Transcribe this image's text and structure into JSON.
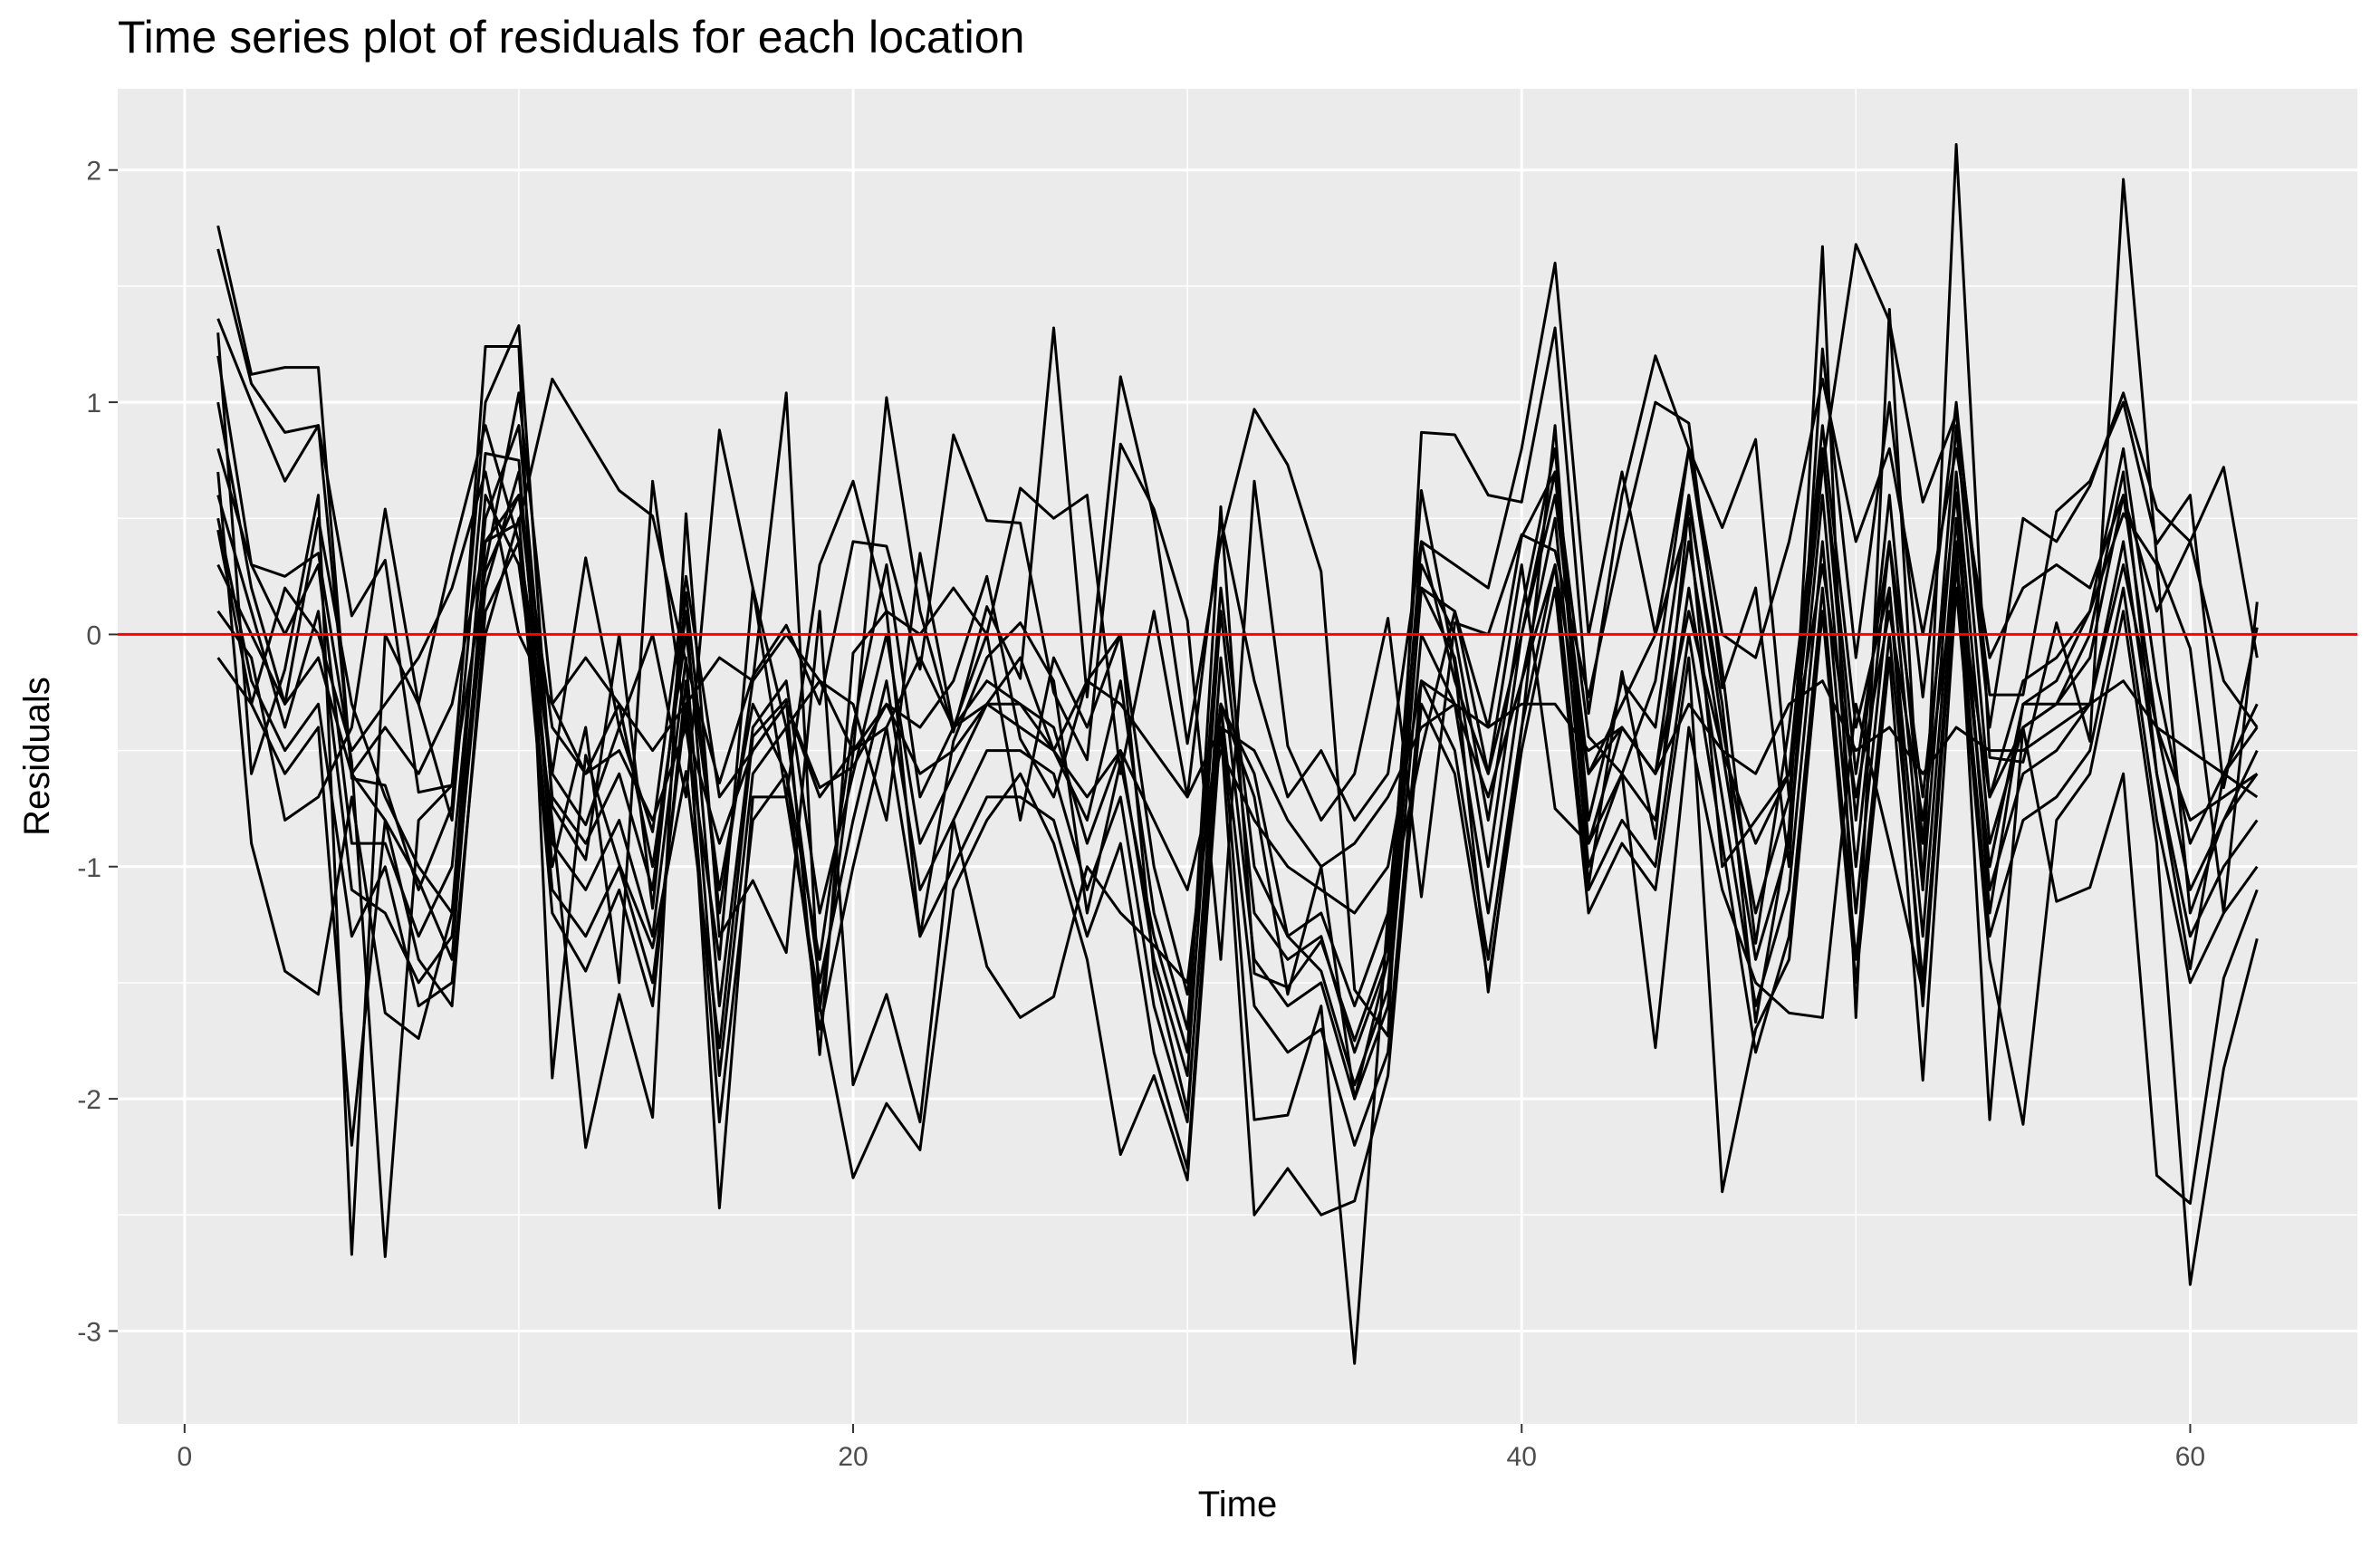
{
  "chart_data": {
    "type": "line",
    "title": "Time series plot of residuals for each location",
    "xlabel": "Time",
    "ylabel": "Residuals",
    "xlim": [
      -2,
      65
    ],
    "ylim": [
      -3.4,
      2.35
    ],
    "x_ticks": [
      0,
      20,
      40,
      60
    ],
    "y_ticks": [
      -3,
      -2,
      -1,
      0,
      1,
      2
    ],
    "x_tick_labels": [
      "0",
      "20",
      "40",
      "60"
    ],
    "y_tick_labels": [
      "-3",
      "-2",
      "-1",
      "0",
      "1",
      "2"
    ],
    "grid": true,
    "panel_background": "#ebebeb",
    "grid_color": "#ffffff",
    "series_color": "#000000",
    "reference_line": {
      "y": 0,
      "color": "#ff0000"
    },
    "x": [
      1,
      2,
      3,
      4,
      5,
      6,
      7,
      8,
      9,
      10,
      11,
      12,
      13,
      14,
      15,
      16,
      17,
      18,
      19,
      20,
      21,
      22,
      23,
      24,
      25,
      26,
      27,
      28,
      29,
      30,
      31,
      32,
      33,
      34,
      35,
      36,
      37,
      38,
      39,
      40,
      41,
      42,
      43,
      44,
      45,
      46,
      47,
      48,
      49,
      50,
      51,
      52,
      53,
      54,
      55,
      56,
      57,
      58,
      59,
      60,
      61,
      62
    ],
    "series": [
      {
        "values": [
          1.76,
          1.12,
          1.15,
          1.15,
          -0.62,
          -0.65,
          -1.1,
          -0.74,
          1.24,
          1.24,
          -1.91,
          -0.52,
          -0.99,
          -1.35,
          -0.59,
          -1.78,
          -0.44,
          -0.28,
          -1.81,
          -0.08,
          0.1,
          -1.3,
          -0.46,
          -0.1,
          0.05,
          -0.2,
          -1.2,
          -0.55,
          -1.3,
          -1.8,
          0.55,
          -1.46,
          -1.52,
          -1.32,
          -1.75,
          -1.34,
          0.62,
          -0.13,
          -1.54,
          -0.41,
          0.9,
          -1.08,
          -0.16,
          -0.88,
          0.56,
          -0.3,
          -1.67,
          -0.84,
          1.67,
          -1.65,
          1.4,
          -1.1,
          2.11,
          -0.53,
          -0.55,
          0.05,
          -0.46,
          1.96,
          0.32,
          -0.06,
          -1.2,
          0.14
        ]
      },
      {
        "values": [
          1.66,
          1.08,
          0.87,
          0.9,
          0.08,
          0.32,
          -0.68,
          -0.65,
          1.0,
          1.33,
          -0.74,
          -0.97,
          0.0,
          -1.18,
          0.18,
          -1.2,
          -0.2,
          1.04,
          -1.62,
          -0.51,
          1.02,
          0.1,
          -0.42,
          0.12,
          -0.19,
          1.32,
          -0.27,
          1.11,
          0.5,
          -0.47,
          0.4,
          0.97,
          0.73,
          0.27,
          -1.53,
          -1.73,
          0.87,
          0.86,
          0.6,
          0.57,
          1.32,
          -0.34,
          0.6,
          1.2,
          0.8,
          0.46,
          0.84,
          -0.7,
          0.72,
          1.68,
          1.35,
          0.57,
          0.95,
          -0.26,
          -0.26,
          0.53,
          0.66,
          1.0,
          0.39,
          0.6,
          -0.66,
          0.03
        ]
      },
      {
        "values": [
          1.36,
          1.0,
          0.66,
          0.9,
          -0.6,
          -0.8,
          -1.06,
          -1.4,
          0.4,
          0.48,
          1.1,
          0.86,
          0.62,
          0.51,
          -0.12,
          -0.64,
          -0.18,
          0.04,
          -0.3,
          0.4,
          0.38,
          -0.15,
          0.86,
          0.49,
          0.48,
          -0.25,
          -0.54,
          0.82,
          0.54,
          0.06,
          -1.4,
          0.66,
          -0.48,
          -0.8,
          -0.6,
          0.07,
          -1.13,
          0.05,
          0.0,
          0.43,
          0.36,
          -0.27,
          0.4,
          1.0,
          0.91,
          -0.23,
          0.2,
          -1.0,
          1.23,
          -0.1,
          1.0,
          -0.27,
          1.0,
          -0.4,
          0.5,
          0.4,
          0.64,
          1.04,
          0.54,
          0.4,
          -0.2,
          -0.4
        ]
      },
      {
        "values": [
          1.3,
          -0.6,
          -0.15,
          0.6,
          -2.67,
          0.0,
          -0.3,
          -0.8,
          0.78,
          0.75,
          -1.0,
          -0.4,
          -1.5,
          0.66,
          -0.4,
          -1.4,
          0.2,
          -0.4,
          -0.2,
          -0.3,
          -0.8,
          0.35,
          -0.4,
          0.0,
          -0.8,
          -0.1,
          -0.4,
          0.0,
          -1.0,
          -1.55,
          -0.3,
          -0.7,
          -1.55,
          -1.0,
          -2.0,
          -1.4,
          0.4,
          -0.2,
          -0.6,
          0.0,
          0.6,
          -0.6,
          -0.3,
          0.0,
          0.5,
          -1.0,
          -0.8,
          -0.6,
          0.9,
          -0.4,
          0.2,
          -1.6,
          0.3,
          -1.0,
          -0.3,
          -0.2,
          0.1,
          0.52,
          0.3,
          -1.2,
          -0.8,
          -0.5
        ]
      },
      {
        "values": [
          1.2,
          0.3,
          0.25,
          0.35,
          -0.55,
          -2.68,
          -0.8,
          -0.65,
          0.27,
          0.6,
          -0.6,
          -0.82,
          -0.4,
          -0.85,
          0.25,
          -0.7,
          -0.5,
          -0.3,
          -0.66,
          -0.57,
          -0.3,
          -0.4,
          -0.2,
          0.25,
          -0.45,
          -0.7,
          -0.2,
          0.0,
          -1.45,
          -2.05,
          -0.3,
          -0.6,
          -1.3,
          -1.45,
          -1.94,
          -1.53,
          0.2,
          0.1,
          -0.4,
          0.42,
          0.7,
          -0.44,
          -0.6,
          -0.2,
          0.8,
          -0.15,
          -1.33,
          -0.4,
          0.8,
          -0.6,
          0.4,
          -0.7,
          0.61,
          -1.2,
          -0.3,
          -0.3,
          0.0,
          0.7,
          -0.6,
          -1.44,
          -0.6,
          -0.3
        ]
      },
      {
        "values": [
          1.0,
          0.2,
          -0.3,
          0.5,
          -0.3,
          -0.7,
          -1.0,
          -1.2,
          0.3,
          1.04,
          -0.3,
          -0.6,
          -0.3,
          -1.0,
          0.0,
          -1.1,
          -0.3,
          -0.6,
          -1.4,
          -0.4,
          0.3,
          -0.7,
          -0.4,
          -0.3,
          -0.1,
          -0.5,
          -0.8,
          -0.2,
          -1.2,
          -1.7,
          0.2,
          -1.0,
          -1.3,
          -1.2,
          -1.6,
          -1.2,
          0.3,
          0.0,
          -0.8,
          0.1,
          0.8,
          -0.8,
          -0.2,
          -0.4,
          0.6,
          -0.4,
          -1.2,
          -0.7,
          0.8,
          -0.8,
          0.6,
          -0.9,
          0.9,
          -0.7,
          -0.2,
          -0.1,
          0.1,
          0.8,
          -0.2,
          -0.9,
          -0.6,
          -0.4
        ]
      },
      {
        "values": [
          0.8,
          0.3,
          0.0,
          0.3,
          -0.9,
          -0.9,
          -1.3,
          -1.0,
          0.5,
          0.9,
          -0.7,
          -0.9,
          -0.6,
          -1.1,
          0.1,
          -1.6,
          -0.4,
          -0.2,
          -1.2,
          -0.6,
          0.0,
          -0.9,
          -0.6,
          -0.3,
          -0.3,
          -0.4,
          -0.9,
          -0.5,
          -1.4,
          -1.9,
          0.1,
          -1.2,
          -1.4,
          -1.3,
          -1.8,
          -1.4,
          0.2,
          -0.1,
          -1.0,
          0.0,
          0.7,
          -0.9,
          -0.4,
          -0.6,
          0.4,
          -0.5,
          -1.4,
          -0.9,
          0.6,
          -1.0,
          0.4,
          -1.1,
          0.7,
          -0.9,
          -0.4,
          -0.3,
          -0.1,
          0.6,
          -0.4,
          -1.1,
          -0.8,
          -0.6
        ]
      },
      {
        "values": [
          0.6,
          0.1,
          -0.4,
          0.1,
          -1.1,
          -1.2,
          -1.5,
          -1.3,
          0.2,
          0.7,
          -0.9,
          -1.1,
          -0.8,
          -1.3,
          -0.1,
          -1.9,
          -0.6,
          -0.4,
          -1.5,
          -0.8,
          -0.2,
          -1.1,
          -0.8,
          -0.5,
          -0.5,
          -0.6,
          -1.1,
          -0.7,
          -1.6,
          -2.1,
          -0.1,
          -1.4,
          -1.6,
          -1.5,
          -2.0,
          -1.6,
          0.0,
          -0.3,
          -1.2,
          -0.2,
          0.5,
          -1.0,
          -0.6,
          -0.8,
          0.2,
          -0.7,
          -1.6,
          -1.1,
          0.4,
          -1.2,
          0.2,
          -1.3,
          0.5,
          -1.1,
          -0.6,
          -0.5,
          -0.3,
          0.4,
          -0.6,
          -1.3,
          -1.0,
          -0.8
        ]
      },
      {
        "values": [
          0.5,
          -0.2,
          -0.5,
          -0.3,
          -1.3,
          -1.0,
          -1.6,
          -1.5,
          0.0,
          0.5,
          -1.1,
          -1.3,
          -1.0,
          -1.5,
          -0.3,
          -2.1,
          -0.8,
          -0.6,
          -1.7,
          -1.0,
          -0.4,
          -1.3,
          -1.0,
          -0.7,
          -0.7,
          -0.8,
          -1.3,
          -0.9,
          -1.8,
          -2.3,
          -0.3,
          -1.6,
          -1.8,
          -1.7,
          -2.2,
          -1.8,
          -0.2,
          -0.5,
          -1.4,
          -0.4,
          0.3,
          -1.1,
          -0.8,
          -1.0,
          0.0,
          -0.9,
          -1.8,
          -1.3,
          0.2,
          -1.4,
          0.0,
          -1.5,
          0.3,
          -1.3,
          -0.8,
          -0.7,
          -0.5,
          0.2,
          -0.8,
          -1.5,
          -1.2,
          -1.0
        ]
      },
      {
        "values": [
          0.45,
          -0.3,
          -0.6,
          -0.4,
          -2.2,
          -0.8,
          -1.4,
          -1.6,
          0.1,
          0.4,
          -1.2,
          -1.45,
          -1.1,
          -1.6,
          -0.2,
          -2.47,
          -0.7,
          -0.7,
          -1.6,
          -2.34,
          -2.02,
          -2.22,
          -1.1,
          -0.8,
          -0.6,
          -0.9,
          -1.4,
          -2.24,
          -1.9,
          -2.35,
          -0.4,
          -2.5,
          -2.3,
          -2.5,
          -2.44,
          -1.9,
          -0.3,
          -0.6,
          -1.5,
          -0.5,
          0.2,
          -1.2,
          -0.9,
          -1.1,
          -0.1,
          -2.4,
          -1.7,
          -1.4,
          0.1,
          -1.5,
          -0.1,
          -1.92,
          0.2,
          -1.4,
          -2.11,
          -0.8,
          -0.6,
          0.1,
          -0.9,
          -2.8,
          -1.87,
          -1.31
        ]
      },
      {
        "values": [
          0.7,
          -0.9,
          -1.45,
          -1.55,
          -0.7,
          -1.63,
          -1.74,
          -1.2,
          0.6,
          0.3,
          -0.8,
          -2.21,
          -1.55,
          -2.08,
          0.52,
          -1.3,
          -1.06,
          -1.37,
          0.1,
          -1.94,
          -1.55,
          -2.1,
          -0.8,
          -1.43,
          -1.65,
          -1.56,
          -1.0,
          -1.2,
          -1.34,
          -1.5,
          -0.3,
          -2.09,
          -2.07,
          -1.6,
          -3.14,
          -1.2,
          -0.5,
          0.1,
          -0.6,
          0.3,
          -0.75,
          -0.9,
          -0.6,
          -1.78,
          -0.4,
          -1.1,
          -1.5,
          -1.63,
          -1.65,
          -0.3,
          -0.9,
          -1.54,
          0.4,
          -2.09,
          -0.4,
          -1.15,
          -1.09,
          -0.6,
          -2.33,
          -2.45,
          -1.48,
          -1.1
        ]
      },
      {
        "values": [
          0.1,
          -0.1,
          -0.8,
          -0.7,
          -0.4,
          0.54,
          -0.3,
          0.34,
          0.9,
          0.4,
          -0.6,
          0.33,
          -0.4,
          0.0,
          -0.7,
          0.88,
          0.2,
          -0.7,
          0.3,
          0.66,
          0.1,
          0.0,
          0.2,
          0.0,
          0.63,
          0.5,
          0.6,
          -0.6,
          0.1,
          -0.7,
          0.5,
          -0.2,
          -0.7,
          -0.5,
          -0.8,
          -0.6,
          0.4,
          0.3,
          0.2,
          0.8,
          1.6,
          0.0,
          0.7,
          0.0,
          0.8,
          0.0,
          -0.1,
          0.4,
          1.1,
          0.4,
          0.8,
          0.0,
          0.8,
          -0.1,
          0.2,
          0.3,
          0.2,
          0.6,
          0.1,
          0.4,
          0.72,
          -0.1
        ]
      },
      {
        "values": [
          -0.1,
          -0.3,
          0.2,
          0.0,
          -0.5,
          -0.3,
          -0.1,
          0.2,
          0.7,
          0.0,
          -0.3,
          -0.1,
          -0.3,
          -0.5,
          -0.3,
          -0.1,
          -0.2,
          0.0,
          -0.2,
          -0.5,
          -0.4,
          -0.1,
          -0.4,
          -0.2,
          -0.3,
          -0.5,
          -0.2,
          -0.3,
          -0.5,
          -0.7,
          -0.4,
          -0.5,
          -0.8,
          -1.0,
          -0.9,
          -0.7,
          -0.4,
          -0.3,
          -0.4,
          -0.3,
          -0.3,
          -0.5,
          -0.4,
          -0.6,
          -0.3,
          -0.5,
          -0.6,
          -0.3,
          -0.2,
          -0.5,
          -0.4,
          -0.6,
          -0.4,
          -0.5,
          -0.5,
          -0.4,
          -0.3,
          -0.2,
          -0.4,
          -0.5,
          -0.6,
          -0.7
        ]
      },
      {
        "values": [
          0.3,
          0.0,
          -0.3,
          -0.1,
          -0.6,
          -0.4,
          -0.6,
          -0.3,
          0.4,
          0.6,
          -0.4,
          -0.6,
          -0.5,
          -0.8,
          -0.4,
          -0.9,
          -0.5,
          -0.3,
          -0.7,
          -0.5,
          -0.3,
          -0.6,
          -0.5,
          -0.3,
          -0.4,
          -0.5,
          -0.7,
          -0.5,
          -0.8,
          -1.1,
          -0.5,
          -0.8,
          -1.0,
          -1.1,
          -1.2,
          -1.0,
          -0.2,
          -0.3,
          -0.7,
          -0.2,
          0.3,
          -0.6,
          -0.4,
          -0.6,
          0.1,
          -0.5,
          -0.9,
          -0.6,
          0.3,
          -0.7,
          0.1,
          -0.8,
          0.3,
          -0.7,
          -0.4,
          -0.3,
          -0.3,
          0.3,
          -0.4,
          -0.8,
          -0.7,
          -0.6
        ]
      }
    ]
  }
}
